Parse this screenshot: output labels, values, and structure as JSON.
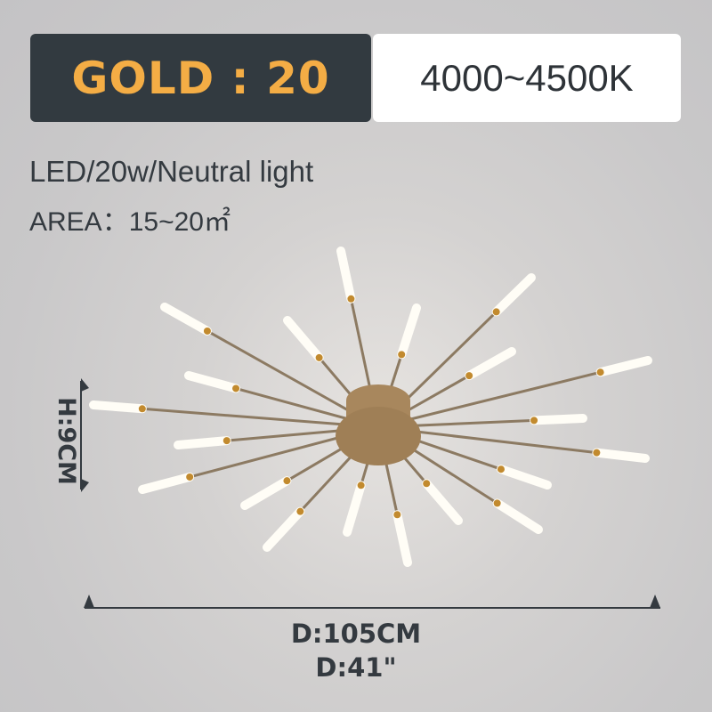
{
  "header": {
    "model_label": "GOLD : 20",
    "color_temperature": "4000~4500K"
  },
  "specs": {
    "line1": "LED/20w/Neutral light",
    "line2": "AREA：15~20㎡"
  },
  "dimensions": {
    "height": "H:9CM",
    "diameter_cm": "D:105CM",
    "diameter_in": "D:41\""
  },
  "colors": {
    "badge_dark": "#323a40",
    "accent_gold": "#f4ad45",
    "text": "#343a40",
    "lamp_body": "#a8875d"
  }
}
